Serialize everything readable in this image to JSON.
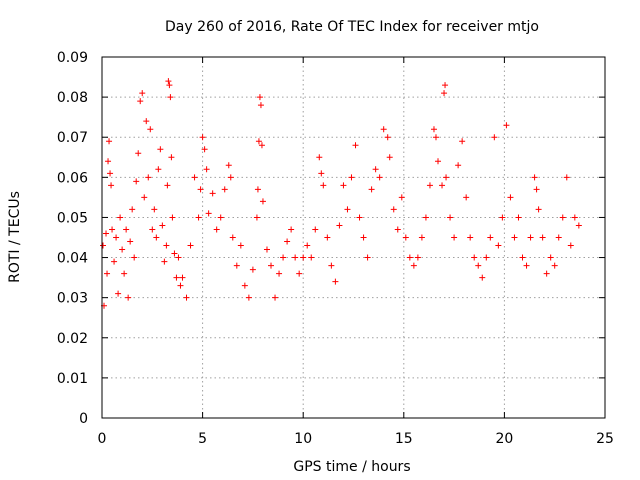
{
  "chart_data": {
    "type": "scatter",
    "title": "Day 260 of 2016, Rate Of TEC Index for receiver mtjo",
    "xlabel": "GPS time / hours",
    "ylabel": "ROTI / TECUs",
    "xlim": [
      0,
      25
    ],
    "ylim": [
      0,
      0.09
    ],
    "x_ticks": [
      0,
      5,
      10,
      15,
      20,
      25
    ],
    "x_tick_labels": [
      "0",
      "5",
      "10",
      "15",
      "20",
      "25"
    ],
    "y_ticks": [
      0,
      0.01,
      0.02,
      0.03,
      0.04,
      0.05,
      0.06,
      0.07,
      0.08,
      0.09
    ],
    "y_tick_labels": [
      "0",
      "0.01",
      "0.02",
      "0.03",
      "0.04",
      "0.05",
      "0.06",
      "0.07",
      "0.08",
      "0.09"
    ],
    "grid": true,
    "marker": "plus",
    "color": "#ff0000",
    "series": [
      {
        "name": "ROTI",
        "points": [
          [
            0.05,
            0.043
          ],
          [
            0.1,
            0.028
          ],
          [
            0.2,
            0.046
          ],
          [
            0.25,
            0.036
          ],
          [
            0.3,
            0.064
          ],
          [
            0.35,
            0.069
          ],
          [
            0.4,
            0.061
          ],
          [
            0.45,
            0.058
          ],
          [
            0.5,
            0.047
          ],
          [
            0.6,
            0.039
          ],
          [
            0.7,
            0.045
          ],
          [
            0.8,
            0.031
          ],
          [
            0.9,
            0.05
          ],
          [
            1.0,
            0.042
          ],
          [
            1.1,
            0.036
          ],
          [
            1.2,
            0.047
          ],
          [
            1.3,
            0.03
          ],
          [
            1.4,
            0.044
          ],
          [
            1.5,
            0.052
          ],
          [
            1.6,
            0.04
          ],
          [
            1.7,
            0.059
          ],
          [
            1.8,
            0.066
          ],
          [
            1.9,
            0.079
          ],
          [
            2.0,
            0.081
          ],
          [
            2.1,
            0.055
          ],
          [
            2.2,
            0.074
          ],
          [
            2.3,
            0.06
          ],
          [
            2.4,
            0.072
          ],
          [
            2.5,
            0.047
          ],
          [
            2.6,
            0.052
          ],
          [
            2.7,
            0.045
          ],
          [
            2.8,
            0.062
          ],
          [
            2.9,
            0.067
          ],
          [
            3.0,
            0.048
          ],
          [
            3.1,
            0.039
          ],
          [
            3.2,
            0.043
          ],
          [
            3.25,
            0.058
          ],
          [
            3.3,
            0.084
          ],
          [
            3.35,
            0.083
          ],
          [
            3.4,
            0.08
          ],
          [
            3.45,
            0.065
          ],
          [
            3.5,
            0.05
          ],
          [
            3.6,
            0.041
          ],
          [
            3.7,
            0.035
          ],
          [
            3.8,
            0.04
          ],
          [
            3.9,
            0.033
          ],
          [
            4.0,
            0.035
          ],
          [
            4.2,
            0.03
          ],
          [
            4.4,
            0.043
          ],
          [
            4.6,
            0.06
          ],
          [
            4.8,
            0.05
          ],
          [
            4.9,
            0.057
          ],
          [
            5.0,
            0.07
          ],
          [
            5.1,
            0.067
          ],
          [
            5.2,
            0.062
          ],
          [
            5.3,
            0.051
          ],
          [
            5.5,
            0.056
          ],
          [
            5.7,
            0.047
          ],
          [
            5.9,
            0.05
          ],
          [
            6.1,
            0.057
          ],
          [
            6.3,
            0.063
          ],
          [
            6.4,
            0.06
          ],
          [
            6.5,
            0.045
          ],
          [
            6.7,
            0.038
          ],
          [
            6.9,
            0.043
          ],
          [
            7.1,
            0.033
          ],
          [
            7.3,
            0.03
          ],
          [
            7.5,
            0.037
          ],
          [
            7.7,
            0.05
          ],
          [
            7.75,
            0.057
          ],
          [
            7.8,
            0.069
          ],
          [
            7.85,
            0.08
          ],
          [
            7.9,
            0.078
          ],
          [
            7.95,
            0.068
          ],
          [
            8.0,
            0.054
          ],
          [
            8.2,
            0.042
          ],
          [
            8.4,
            0.038
          ],
          [
            8.6,
            0.03
          ],
          [
            8.8,
            0.036
          ],
          [
            9.0,
            0.04
          ],
          [
            9.2,
            0.044
          ],
          [
            9.4,
            0.047
          ],
          [
            9.6,
            0.04
          ],
          [
            9.8,
            0.036
          ],
          [
            10.0,
            0.04
          ],
          [
            10.2,
            0.043
          ],
          [
            10.4,
            0.04
          ],
          [
            10.6,
            0.047
          ],
          [
            10.8,
            0.065
          ],
          [
            10.9,
            0.061
          ],
          [
            11.0,
            0.058
          ],
          [
            11.2,
            0.045
          ],
          [
            11.4,
            0.038
          ],
          [
            11.6,
            0.034
          ],
          [
            11.8,
            0.048
          ],
          [
            12.0,
            0.058
          ],
          [
            12.2,
            0.052
          ],
          [
            12.4,
            0.06
          ],
          [
            12.6,
            0.068
          ],
          [
            12.8,
            0.05
          ],
          [
            13.0,
            0.045
          ],
          [
            13.2,
            0.04
          ],
          [
            13.4,
            0.057
          ],
          [
            13.6,
            0.062
          ],
          [
            13.8,
            0.06
          ],
          [
            14.0,
            0.072
          ],
          [
            14.2,
            0.07
          ],
          [
            14.3,
            0.065
          ],
          [
            14.5,
            0.052
          ],
          [
            14.7,
            0.047
          ],
          [
            14.9,
            0.055
          ],
          [
            15.1,
            0.045
          ],
          [
            15.3,
            0.04
          ],
          [
            15.5,
            0.038
          ],
          [
            15.7,
            0.04
          ],
          [
            15.9,
            0.045
          ],
          [
            16.1,
            0.05
          ],
          [
            16.3,
            0.058
          ],
          [
            16.5,
            0.072
          ],
          [
            16.6,
            0.07
          ],
          [
            16.7,
            0.064
          ],
          [
            16.9,
            0.058
          ],
          [
            17.0,
            0.081
          ],
          [
            17.05,
            0.083
          ],
          [
            17.1,
            0.06
          ],
          [
            17.3,
            0.05
          ],
          [
            17.5,
            0.045
          ],
          [
            17.7,
            0.063
          ],
          [
            17.9,
            0.069
          ],
          [
            18.1,
            0.055
          ],
          [
            18.3,
            0.045
          ],
          [
            18.5,
            0.04
          ],
          [
            18.7,
            0.038
          ],
          [
            18.9,
            0.035
          ],
          [
            19.1,
            0.04
          ],
          [
            19.3,
            0.045
          ],
          [
            19.5,
            0.07
          ],
          [
            19.7,
            0.043
          ],
          [
            19.9,
            0.05
          ],
          [
            20.1,
            0.073
          ],
          [
            20.3,
            0.055
          ],
          [
            20.5,
            0.045
          ],
          [
            20.7,
            0.05
          ],
          [
            20.9,
            0.04
          ],
          [
            21.1,
            0.038
          ],
          [
            21.3,
            0.045
          ],
          [
            21.5,
            0.06
          ],
          [
            21.6,
            0.057
          ],
          [
            21.7,
            0.052
          ],
          [
            21.9,
            0.045
          ],
          [
            22.1,
            0.036
          ],
          [
            22.3,
            0.04
          ],
          [
            22.5,
            0.038
          ],
          [
            22.7,
            0.045
          ],
          [
            22.9,
            0.05
          ],
          [
            23.1,
            0.06
          ],
          [
            23.3,
            0.043
          ],
          [
            23.5,
            0.05
          ],
          [
            23.7,
            0.048
          ]
        ]
      }
    ]
  }
}
